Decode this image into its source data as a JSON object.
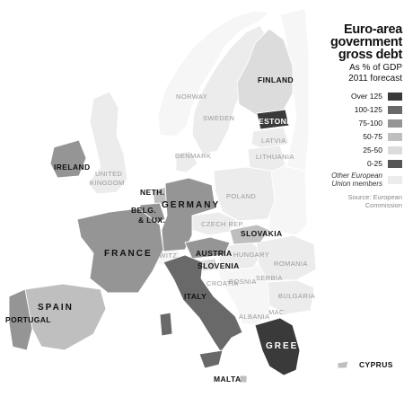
{
  "legend": {
    "title": "Euro-area government gross debt",
    "subtitle_line1": "As % of GDP",
    "subtitle_line2": "2011 forecast",
    "items": [
      {
        "label": "Over 125",
        "color": "#3a3a3a"
      },
      {
        "label": "100-125",
        "color": "#696969"
      },
      {
        "label": "75-100",
        "color": "#959595"
      },
      {
        "label": "50-75",
        "color": "#bfbfbf"
      },
      {
        "label": "25-50",
        "color": "#dcdcdc"
      },
      {
        "label": "0-25",
        "color": "#555555"
      }
    ],
    "other_line1": "Other European",
    "other_line2": "Union members",
    "other_color": "#ececec",
    "source_line1": "Source: European",
    "source_line2": "Commission"
  },
  "countries": {
    "finland": "FINLAND",
    "norway": "NORWAY",
    "sweden": "SWEDEN",
    "estonia": "ESTONIA",
    "latvia": "LATVIA",
    "lithuania": "LITHUANIA",
    "denmark": "DENMARK",
    "ireland": "IRELAND",
    "uk_line1": "UNITED",
    "uk_line2": "KINGDOM",
    "neth": "NETH.",
    "belg": "BELG.",
    "lux": "& LUX.",
    "germany": "GERMANY",
    "poland": "POLAND",
    "czech": "CZECH REP.",
    "slovakia": "SLOVAKIA",
    "france": "FRANCE",
    "switz": "SWITZ",
    "austria": "AUSTRIA",
    "slovenia": "SLOVENIA",
    "hungary": "HUNGARY",
    "romania": "ROMANIA",
    "croatia": "CROATIA",
    "bosnia": "BOSNIA",
    "serbia": "SERBIA",
    "bulgaria": "BULGARIA",
    "mac": "MAC.",
    "albania": "ALBANIA",
    "spain": "SPAIN",
    "portugal": "PORTUGAL",
    "italy": "ITALY",
    "greece": "GREECE",
    "malta": "MALTA",
    "cyprus": "CYPRUS"
  },
  "colors": {
    "over125": "#3a3a3a",
    "r100_125": "#696969",
    "r75_100": "#959595",
    "r50_75": "#bfbfbf",
    "r25_50": "#dcdcdc",
    "r0_25": "#555555",
    "other_eu": "#ececec",
    "non_eu": "#f6f6f6"
  }
}
